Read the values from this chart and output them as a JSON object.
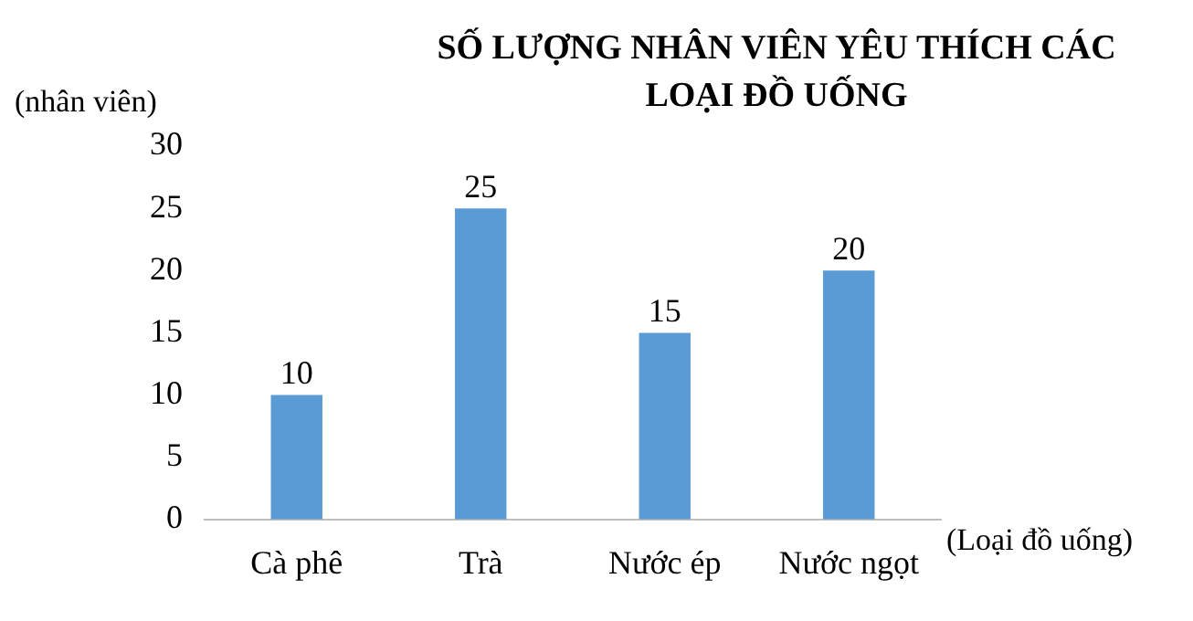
{
  "chart_data": {
    "type": "bar",
    "title": "SỐ LƯỢNG NHÂN VIÊN YÊU THÍCH CÁC LOẠI ĐỒ UỐNG",
    "ylabel": "(nhân viên)",
    "xlabel": "(Loại đồ uống)",
    "categories": [
      "Cà phê",
      "Trà",
      "Nước ép",
      "Nước ngọt"
    ],
    "values": [
      10,
      25,
      15,
      20
    ],
    "color": "#5b9bd5",
    "ylim": [
      0,
      30
    ],
    "yticks": [
      0,
      5,
      10,
      15,
      20,
      25,
      30
    ],
    "grid": false,
    "legend": false,
    "data_labels": true
  }
}
